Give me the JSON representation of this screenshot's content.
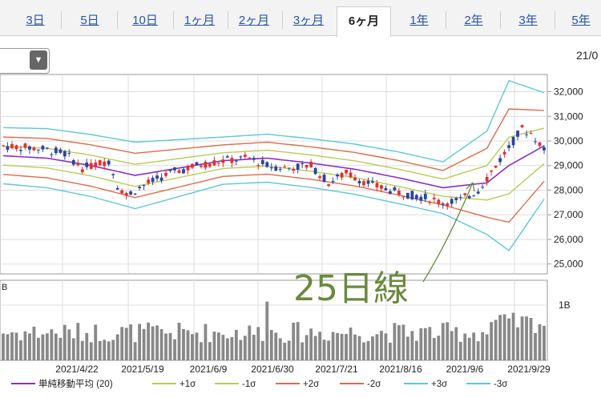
{
  "tabs": [
    {
      "label": "3日",
      "active": false
    },
    {
      "label": "5日",
      "active": false
    },
    {
      "label": "10日",
      "active": false
    },
    {
      "label": "1ヶ月",
      "active": false
    },
    {
      "label": "2ヶ月",
      "active": false
    },
    {
      "label": "3ヶ月",
      "active": false
    },
    {
      "label": "6ヶ月",
      "active": true
    },
    {
      "label": "1年",
      "active": false
    },
    {
      "label": "2年",
      "active": false
    },
    {
      "label": "3年",
      "active": false
    },
    {
      "label": "5年",
      "active": false
    }
  ],
  "header": {
    "date_text": "21/0"
  },
  "annotation": {
    "text": "25日線"
  },
  "chart_data": {
    "type": "line",
    "price_axis": {
      "ticks": [
        "32,000",
        "31,000",
        "30,000",
        "29,000",
        "28,000",
        "27,000",
        "26,000",
        "25,000"
      ],
      "values": [
        32000,
        31000,
        30000,
        29000,
        28000,
        27000,
        26000,
        25000
      ],
      "ylim": [
        24600,
        32700
      ]
    },
    "volume_axis": {
      "ticks": [
        "1B"
      ]
    },
    "x_labels": [
      "2021/4/22",
      "2021/5/19",
      "2021/6/9",
      "2021/6/30",
      "2021/7/21",
      "2021/8/16",
      "2021/9/6",
      "2021/9/29"
    ],
    "volume_label": "B",
    "legend": [
      {
        "name": "単純移動平均 (20)",
        "color": "#8b2fc9"
      },
      {
        "name": "+1σ",
        "color": "#b8cc55"
      },
      {
        "name": "-1σ",
        "color": "#b8cc55"
      },
      {
        "name": "+2σ",
        "color": "#e06a4a"
      },
      {
        "name": "-2σ",
        "color": "#e06a4a"
      },
      {
        "name": "+3σ",
        "color": "#5cc8d8"
      },
      {
        "name": "-3σ",
        "color": "#5cc8d8"
      }
    ],
    "x_range": [
      0,
      123
    ],
    "candles_count": 124,
    "sma": [
      [
        0,
        29400
      ],
      [
        10,
        29300
      ],
      [
        20,
        29000
      ],
      [
        30,
        28600
      ],
      [
        40,
        28900
      ],
      [
        50,
        29200
      ],
      [
        60,
        29300
      ],
      [
        70,
        29100
      ],
      [
        80,
        28850
      ],
      [
        90,
        28500
      ],
      [
        100,
        28100
      ],
      [
        110,
        28300
      ],
      [
        115,
        29000
      ],
      [
        120,
        29500
      ],
      [
        123,
        29800
      ]
    ],
    "band_half_widths": {
      "s1": [
        [
          0,
          380
        ],
        [
          20,
          420
        ],
        [
          30,
          450
        ],
        [
          50,
          320
        ],
        [
          70,
          330
        ],
        [
          90,
          350
        ],
        [
          100,
          350
        ],
        [
          110,
          700
        ],
        [
          115,
          1150
        ],
        [
          123,
          720
        ]
      ]
    }
  },
  "colors": {
    "up": "#e23030",
    "down": "#2a45a0",
    "grid": "#dddddd",
    "text": "#222222",
    "volume": "#888888"
  }
}
